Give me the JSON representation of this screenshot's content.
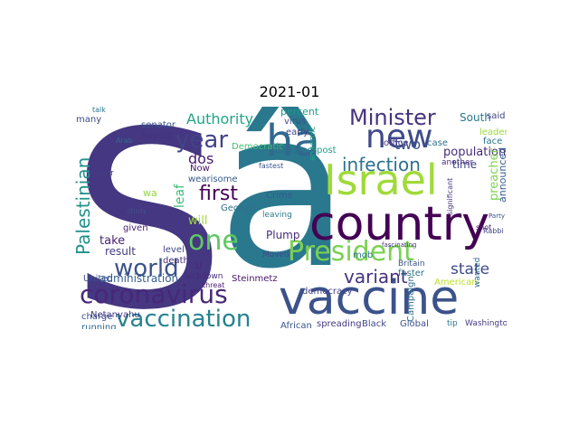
{
  "title": "2021-01",
  "words": [
    {
      "t": "S",
      "c": "#453781"
    },
    {
      "t": "â",
      "c": "#2a788e"
    },
    {
      "t": "vaccine",
      "c": "#3b528b"
    },
    {
      "t": "country",
      "c": "#440154"
    },
    {
      "t": "Israel",
      "c": "#a0da39"
    },
    {
      "t": "ha",
      "c": "#31688e"
    },
    {
      "t": "new",
      "c": "#3e4a89"
    },
    {
      "t": "President",
      "c": "#7ad151"
    },
    {
      "t": "coronavirus",
      "c": "#482878"
    },
    {
      "t": "vaccination",
      "c": "#26828e"
    },
    {
      "t": "Minister",
      "c": "#46337e"
    },
    {
      "t": "world",
      "c": "#3b528b"
    },
    {
      "t": "one",
      "c": "#5ec962"
    },
    {
      "t": "year",
      "c": "#414487"
    },
    {
      "t": "first",
      "c": "#440154"
    },
    {
      "t": "infection",
      "c": "#2c728e"
    },
    {
      "t": "variant",
      "c": "#46337e"
    },
    {
      "t": "Palestinian",
      "c": "#21918c"
    },
    {
      "t": "state",
      "c": "#3e4a89"
    },
    {
      "t": "population",
      "c": "#472d7b"
    },
    {
      "t": "two",
      "c": "#3b528b"
    },
    {
      "t": "dos",
      "c": "#481b6d"
    },
    {
      "t": "Authority",
      "c": "#21a685"
    },
    {
      "t": "administration",
      "c": "#355f8d"
    },
    {
      "t": "take",
      "c": "#481f70"
    },
    {
      "t": "result",
      "c": "#433e85"
    },
    {
      "t": "will",
      "c": "#a0da39"
    },
    {
      "t": "Plump",
      "c": "#472c7a"
    },
    {
      "t": "South",
      "c": "#2a788e"
    },
    {
      "t": "time",
      "c": "#404688"
    },
    {
      "t": "leaf",
      "c": "#3dbc74"
    },
    {
      "t": "Baptist",
      "c": "#46327e"
    },
    {
      "t": "senator",
      "c": "#39568c"
    },
    {
      "t": "Democratic",
      "c": "#44bf70"
    },
    {
      "t": "Georgia",
      "c": "#2d708e"
    },
    {
      "t": "Netanyahu",
      "c": "#453882"
    },
    {
      "t": "charge",
      "c": "#3e4c8a"
    },
    {
      "t": "running",
      "c": "#31688e"
    },
    {
      "t": "Now",
      "c": "#481467"
    },
    {
      "t": "wearisome",
      "c": "#38598c"
    },
    {
      "t": "Crime",
      "c": "#365c8d"
    },
    {
      "t": "Congress",
      "c": "#2e6f8e"
    },
    {
      "t": "leaving",
      "c": "#287c8e"
    },
    {
      "t": "Moved",
      "c": "#3e4989"
    },
    {
      "t": "Steinmetz",
      "c": "#481769"
    },
    {
      "t": "U",
      "c": "#472a7a"
    },
    {
      "t": "level",
      "c": "#3f4788"
    },
    {
      "t": "death",
      "c": "#46307e"
    },
    {
      "t": "United",
      "c": "#3a548c"
    },
    {
      "t": "given",
      "c": "#482374"
    },
    {
      "t": "wa",
      "c": "#8fd744"
    },
    {
      "t": "percent",
      "c": "#1f9a8a"
    },
    {
      "t": "virus",
      "c": "#3d4d8a"
    },
    {
      "t": "early",
      "c": "#423f85"
    },
    {
      "t": "post",
      "c": "#1fa088"
    },
    {
      "t": "anaemic",
      "c": "#20a386"
    },
    {
      "t": "office",
      "c": "#453882"
    },
    {
      "t": "case",
      "c": "#2d718e"
    },
    {
      "t": "another",
      "c": "#472f7d"
    },
    {
      "t": "mob",
      "c": "#2b758e"
    },
    {
      "t": "Britain",
      "c": "#3a548c"
    },
    {
      "t": "faster",
      "c": "#2c728e"
    },
    {
      "t": "Campaign",
      "c": "#2e6e8e"
    },
    {
      "t": "American",
      "c": "#bddf26"
    },
    {
      "t": "democracy",
      "c": "#414487"
    },
    {
      "t": "Global",
      "c": "#3b528b"
    },
    {
      "t": "Black",
      "c": "#3f4889"
    },
    {
      "t": "spreading",
      "c": "#453781"
    },
    {
      "t": "African",
      "c": "#39568c"
    },
    {
      "t": "tip",
      "c": "#2a788e"
    },
    {
      "t": "Washington",
      "c": "#443983"
    },
    {
      "t": "wanted",
      "c": "#2d708e"
    },
    {
      "t": "said",
      "c": "#404688"
    },
    {
      "t": "face",
      "c": "#2b748e"
    },
    {
      "t": "leader",
      "c": "#9bd93c"
    },
    {
      "t": "preacher",
      "c": "#7fd34e"
    },
    {
      "t": "announced",
      "c": "#365d8d"
    },
    {
      "t": "significant",
      "c": "#463480"
    },
    {
      "t": "many",
      "c": "#3e4a89"
    },
    {
      "t": "never",
      "c": "#423f85"
    },
    {
      "t": "lockdown",
      "c": "#472c7a"
    },
    {
      "t": "fastest",
      "c": "#3b528b"
    },
    {
      "t": "threat",
      "c": "#481d6f"
    },
    {
      "t": "Rabbi",
      "c": "#404688"
    },
    {
      "t": "shot",
      "c": "#481668"
    },
    {
      "t": "talk",
      "c": "#2a788e"
    },
    {
      "t": "Party",
      "c": "#3d4e8a"
    },
    {
      "t": "fascinating",
      "c": "#46327e"
    },
    {
      "t": "study",
      "c": "#3a538b"
    },
    {
      "t": "Arab",
      "c": "#2f6c8e"
    }
  ]
}
